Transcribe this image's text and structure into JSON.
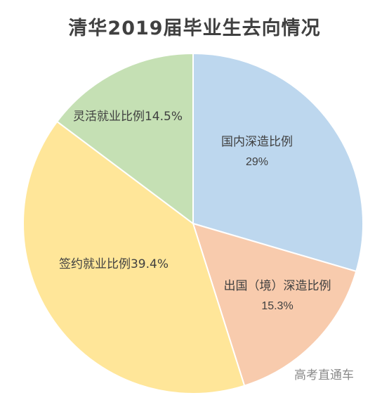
{
  "chart_data": {
    "type": "pie",
    "title": "清华2019届毕业生去向情况",
    "slices": [
      {
        "label": "国内深造比例",
        "value": 29,
        "value_text": "29%",
        "color": "#bdd7ee",
        "label_layout": "two-line"
      },
      {
        "label": "出国（境）深造比例",
        "value": 15.3,
        "value_text": "15.3%",
        "color": "#f8cbad",
        "label_layout": "two-line"
      },
      {
        "label": "签约就业比例",
        "value": 39.4,
        "value_text": "39.4%",
        "color": "#ffe699",
        "label_layout": "inline"
      },
      {
        "label": "灵活就业比例",
        "value": 14.5,
        "value_text": "14.5%",
        "color": "#c5e0b4",
        "label_layout": "inline"
      }
    ],
    "start_angle": "12 o'clock",
    "direction": "clockwise",
    "legend": "none"
  },
  "watermark": "高考直通车"
}
